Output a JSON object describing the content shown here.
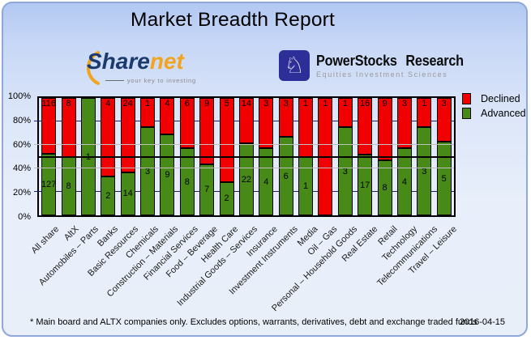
{
  "title": "Market Breadth Report",
  "logos": {
    "sharenet": {
      "name_part1": "Share",
      "name_part2": "net",
      "tagline": "your key to investing",
      "icon": "orange-swoosh-icon",
      "brand_blue": "#1b3a6e",
      "brand_orange": "#f2a41f"
    },
    "powerstocks": {
      "line1": "PowerStocks Research",
      "line2": "Equities Investment Sciences",
      "icon": "knight-chess-icon",
      "icon_bg": "#2e2e99"
    }
  },
  "chart_data": {
    "type": "bar",
    "stacked": true,
    "stack_mode": "percent",
    "categories": [
      "All share",
      "AltX",
      "Automobiles – Parts",
      "Banks",
      "Basic Resources",
      "Chemicals",
      "Construction – Materials",
      "Financial Services",
      "Food – Beverage",
      "Health Care",
      "Industrial Goods – Services",
      "Insurance",
      "Investment Instruments",
      "Media",
      "Oil – Gas",
      "Personal – Household Goods",
      "Real Estate",
      "Retail",
      "Technology",
      "Telecommunications",
      "Travel – Leisure"
    ],
    "series": [
      {
        "name": "Declined",
        "color": "#f00000",
        "values": [
          116,
          8,
          0,
          4,
          24,
          1,
          4,
          6,
          9,
          5,
          14,
          3,
          3,
          1,
          1,
          1,
          16,
          9,
          3,
          1,
          3
        ]
      },
      {
        "name": "Advanced",
        "color": "#478a17",
        "values": [
          127,
          8,
          1,
          2,
          14,
          3,
          9,
          8,
          7,
          2,
          22,
          4,
          6,
          1,
          0,
          3,
          17,
          8,
          4,
          3,
          5
        ]
      }
    ],
    "ylabel_ticks": [
      "100%",
      "80%",
      "60%",
      "40%",
      "20%",
      "0%"
    ],
    "ylim": [
      0,
      100
    ],
    "reference_line_pct": 50,
    "grid_on": true,
    "legend_position": "right"
  },
  "colors": {
    "gridline_major": "#1f1f7a",
    "gridline_minor": "#c0c0c0",
    "reference_line": "#000000",
    "card_border": "#8fa7d9"
  },
  "footer": {
    "note": "* Main board and ALTX companies only. Excludes options, warrants, derivatives, debt and exchange traded funds",
    "date": "2016-04-15"
  }
}
